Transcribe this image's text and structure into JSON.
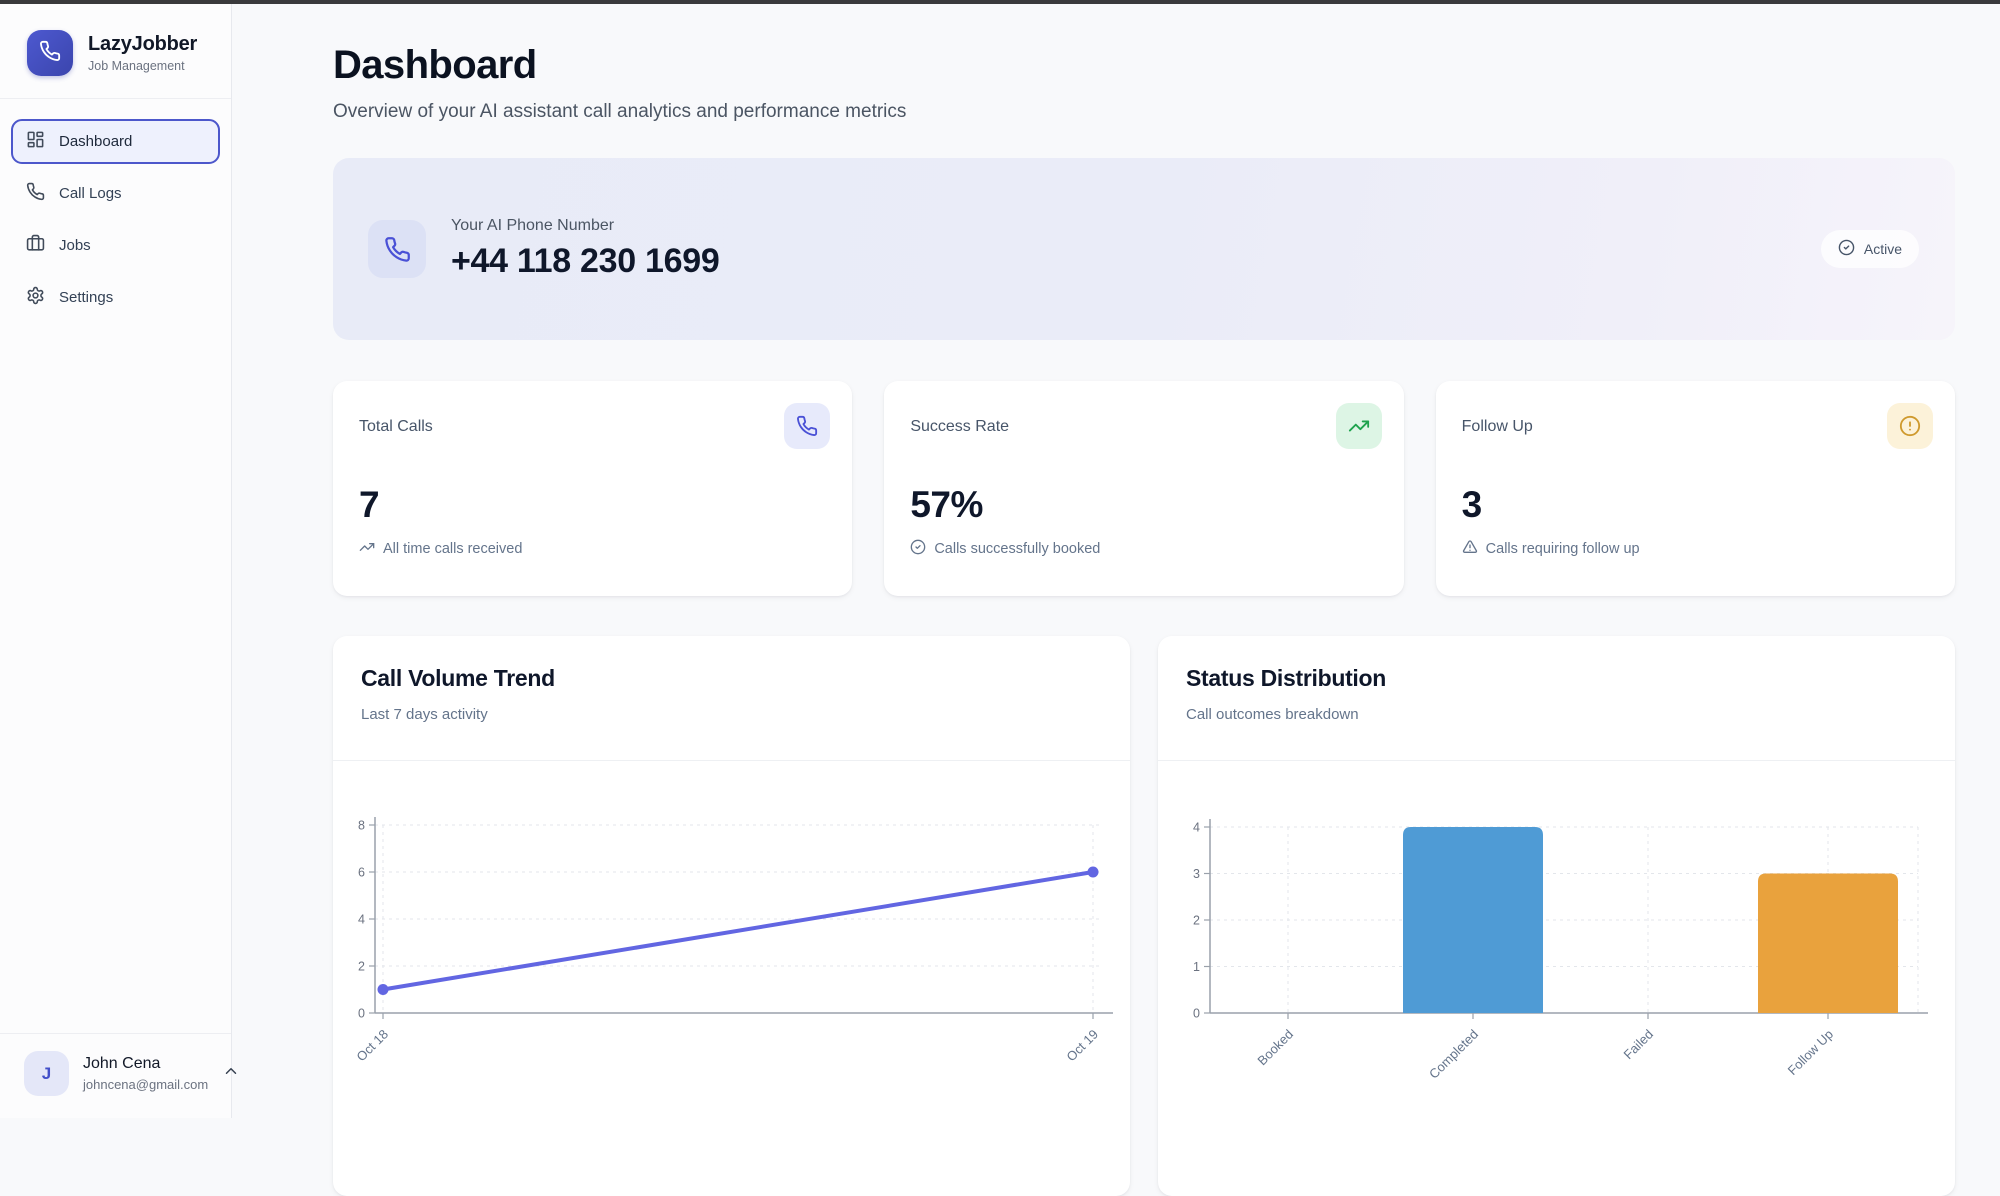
{
  "sidebar": {
    "brand": {
      "name": "LazyJobber",
      "subtitle": "Job Management",
      "logo_icon": "phone-icon",
      "logo_color": "#4450c4"
    },
    "nav": [
      {
        "label": "Dashboard",
        "icon": "layout-grid-icon",
        "active": true
      },
      {
        "label": "Call Logs",
        "icon": "phone-icon",
        "active": false
      },
      {
        "label": "Jobs",
        "icon": "briefcase-icon",
        "active": false
      },
      {
        "label": "Settings",
        "icon": "gear-icon",
        "active": false
      }
    ],
    "user": {
      "initial": "J",
      "name": "John Cena",
      "email": "johncena@gmail.com"
    }
  },
  "header": {
    "title": "Dashboard",
    "subtitle": "Overview of your AI assistant call analytics and performance metrics"
  },
  "phone_banner": {
    "label": "Your AI Phone Number",
    "number": "+44 118 230 1699",
    "status_label": "Active",
    "icon": "phone-icon",
    "accent": "#4a51d6"
  },
  "stats": [
    {
      "label": "Total Calls",
      "value": "7",
      "description": "All time calls received",
      "tile_icon": "phone-icon",
      "desc_icon": "trending-up-icon",
      "accent": "#4a51d6"
    },
    {
      "label": "Success Rate",
      "value": "57%",
      "description": "Calls successfully booked",
      "tile_icon": "trending-up-icon",
      "desc_icon": "check-circle-icon",
      "accent": "#1ea34d"
    },
    {
      "label": "Follow Up",
      "value": "3",
      "description": "Calls requiring follow up",
      "tile_icon": "alert-circle-icon",
      "desc_icon": "triangle-alert-icon",
      "accent": "#cf9a2e"
    }
  ],
  "chart_data": [
    {
      "type": "line",
      "title": "Call Volume Trend",
      "subtitle": "Last 7 days activity",
      "x": [
        "Oct 18",
        "Oct 19"
      ],
      "series": [
        {
          "name": "calls",
          "values": [
            1,
            6
          ]
        }
      ],
      "ylim": [
        0,
        8
      ],
      "yticks": [
        0,
        2,
        4,
        6,
        8
      ],
      "line_color": "#6266e2",
      "grid": true,
      "legend": false
    },
    {
      "type": "bar",
      "title": "Status Distribution",
      "subtitle": "Call outcomes breakdown",
      "categories": [
        "Booked",
        "Completed",
        "Failed",
        "Follow Up"
      ],
      "values": [
        0,
        4,
        0,
        3
      ],
      "bar_colors": [
        null,
        "#4f9bd5",
        null,
        "#e9a23d"
      ],
      "ylim": [
        0,
        4
      ],
      "yticks": [
        0,
        1,
        2,
        3,
        4
      ],
      "grid": true,
      "legend": false
    }
  ]
}
